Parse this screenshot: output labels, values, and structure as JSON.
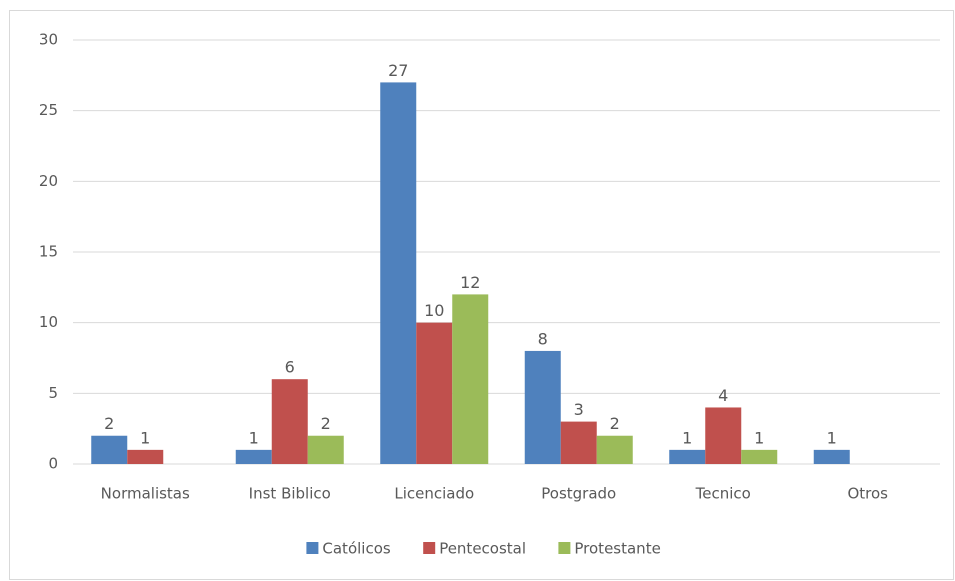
{
  "chart_data": {
    "type": "bar",
    "categories": [
      "Normalistas",
      "Inst Biblico",
      "Licenciado",
      "Postgrado",
      "Tecnico",
      "Otros"
    ],
    "series": [
      {
        "name": "Católicos",
        "color": "#4f81bd",
        "values": [
          2,
          1,
          27,
          8,
          1,
          1
        ]
      },
      {
        "name": "Pentecostal",
        "color": "#c0504d",
        "values": [
          1,
          6,
          10,
          3,
          4,
          null
        ]
      },
      {
        "name": "Protestante",
        "color": "#9bbb59",
        "values": [
          null,
          2,
          12,
          2,
          1,
          null
        ]
      }
    ],
    "ylim": [
      0,
      30
    ],
    "yticks": [
      0,
      5,
      10,
      15,
      20,
      25,
      30
    ],
    "grid": true,
    "legend": "bottom"
  }
}
